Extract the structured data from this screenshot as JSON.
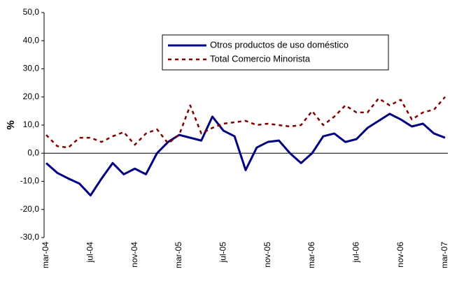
{
  "chart_data": {
    "type": "line",
    "y_label": "%",
    "categories": [
      "mar-04",
      null,
      null,
      null,
      "jul-04",
      null,
      null,
      null,
      "nov-04",
      null,
      null,
      null,
      "mar-05",
      null,
      null,
      null,
      "jul-05",
      null,
      null,
      null,
      "nov-05",
      null,
      null,
      null,
      "mar-06",
      null,
      null,
      null,
      "jul-06",
      null,
      null,
      null,
      "nov-06",
      null,
      null,
      null,
      "mar-07"
    ],
    "series": [
      {
        "name": "Otros productos de uso doméstico",
        "color": "#000080",
        "dashed": false,
        "values": [
          -3.5,
          -7,
          -9,
          -10.8,
          -15,
          -9,
          -3.5,
          -7.5,
          -5.5,
          -7.5,
          0,
          4,
          6.5,
          5.5,
          4.5,
          13,
          8,
          6,
          -6,
          2,
          4,
          4.5,
          0,
          -3.5,
          0,
          6,
          7,
          4,
          5,
          9,
          11.5,
          14,
          12,
          9.5,
          10.5,
          7,
          5.5
        ]
      },
      {
        "name": "Total Comercio Minorista",
        "color": "#800000",
        "dashed": true,
        "values": [
          6.5,
          2.5,
          2,
          5.5,
          5.5,
          4,
          6,
          7.5,
          3,
          7,
          8.5,
          3.5,
          6.5,
          17,
          7,
          9,
          10.5,
          11,
          11.5,
          10,
          10.5,
          10,
          9.5,
          10,
          15,
          10,
          13,
          17,
          14.5,
          14.5,
          19.5,
          17,
          19,
          12,
          14.5,
          15.5,
          20
        ]
      }
    ],
    "ylim": [
      -30,
      50
    ],
    "yticks": [
      {
        "value": -30,
        "label": "-30,0"
      },
      {
        "value": -20,
        "label": "-20,0"
      },
      {
        "value": -10,
        "label": "-10,0"
      },
      {
        "value": 0,
        "label": "0,0"
      },
      {
        "value": 10,
        "label": "10,0"
      },
      {
        "value": 20,
        "label": "20,0"
      },
      {
        "value": 30,
        "label": "30,0"
      },
      {
        "value": 40,
        "label": "40,0"
      },
      {
        "value": 50,
        "label": "50,0"
      }
    ],
    "grid": false
  }
}
